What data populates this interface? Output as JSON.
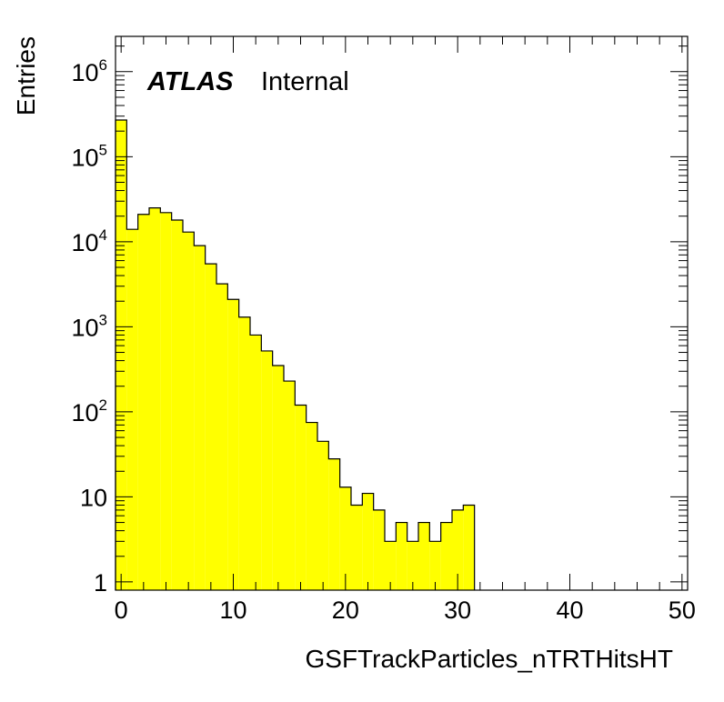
{
  "chart_data": {
    "type": "bar",
    "style": "histogram-step-filled",
    "fill_color": "#ffff00",
    "line_color": "#000000",
    "xlabel": "GSFTrackParticles_nTRTHitsHT",
    "ylabel": "Entries",
    "xlim": [
      -0.5,
      50.5
    ],
    "ylim": [
      0.8,
      2600000
    ],
    "y_scale": "log",
    "grid": false,
    "legend": "none",
    "x_ticks": [
      "0",
      "10",
      "20",
      "30",
      "40",
      "50"
    ],
    "y_ticks": [
      {
        "value": 1,
        "base": "1",
        "exp": ""
      },
      {
        "value": 10,
        "base": "10",
        "exp": ""
      },
      {
        "value": 100,
        "base": "10",
        "exp": "2"
      },
      {
        "value": 1000,
        "base": "10",
        "exp": "3"
      },
      {
        "value": 10000,
        "base": "10",
        "exp": "4"
      },
      {
        "value": 100000,
        "base": "10",
        "exp": "5"
      },
      {
        "value": 1000000,
        "base": "10",
        "exp": "6"
      }
    ],
    "bin_centers": [
      0,
      1,
      2,
      3,
      4,
      5,
      6,
      7,
      8,
      9,
      10,
      11,
      12,
      13,
      14,
      15,
      16,
      17,
      18,
      19,
      20,
      21,
      22,
      23,
      24,
      25,
      26,
      27,
      28,
      29,
      30,
      31,
      32,
      33,
      34,
      35,
      36,
      37,
      38,
      39,
      40,
      41,
      42,
      43,
      44,
      45,
      46,
      47,
      48,
      49,
      50
    ],
    "values": [
      270000,
      14000,
      21000,
      25000,
      22000,
      18000,
      13000,
      9000,
      5500,
      3200,
      2100,
      1300,
      800,
      520,
      350,
      230,
      120,
      75,
      45,
      28,
      13,
      8,
      11,
      7,
      3,
      5,
      3,
      5,
      3,
      5,
      7,
      8,
      0,
      0,
      0,
      0,
      0,
      0,
      0,
      0,
      0,
      0,
      0,
      0,
      0,
      0,
      0,
      0,
      0,
      0,
      0
    ]
  },
  "atlas_label": {
    "experiment": "ATLAS",
    "status": "Internal"
  }
}
